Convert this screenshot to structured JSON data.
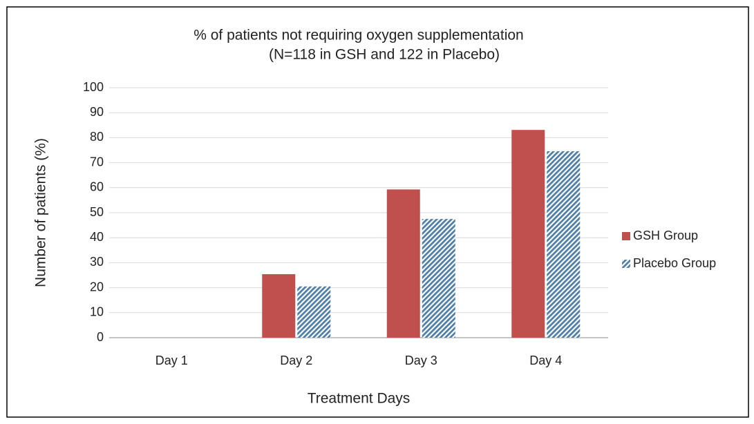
{
  "chart_data": {
    "type": "bar",
    "title": "% of patients not requiring oxygen supplementation",
    "subtitle": "(N=118 in GSH and 122 in Placebo)",
    "x_label": "Treatment Days",
    "y_label": "Number of patients (%)",
    "categories": [
      "Day 1",
      "Day 2",
      "Day 3",
      "Day 4"
    ],
    "series": [
      {
        "name": "GSH Group",
        "color": "#c0504d",
        "values": [
          0,
          25.4,
          59.3,
          83.1
        ]
      },
      {
        "name": "Placebo Group",
        "color": "#4f7fa6",
        "pattern": "diagonal-hatch",
        "values": [
          0,
          20.5,
          47.5,
          74.6
        ]
      }
    ],
    "ylim": [
      0,
      100
    ],
    "yticks": [
      0,
      10,
      20,
      30,
      40,
      50,
      60,
      70,
      80,
      90,
      100
    ],
    "grid": true,
    "legend": "right"
  }
}
